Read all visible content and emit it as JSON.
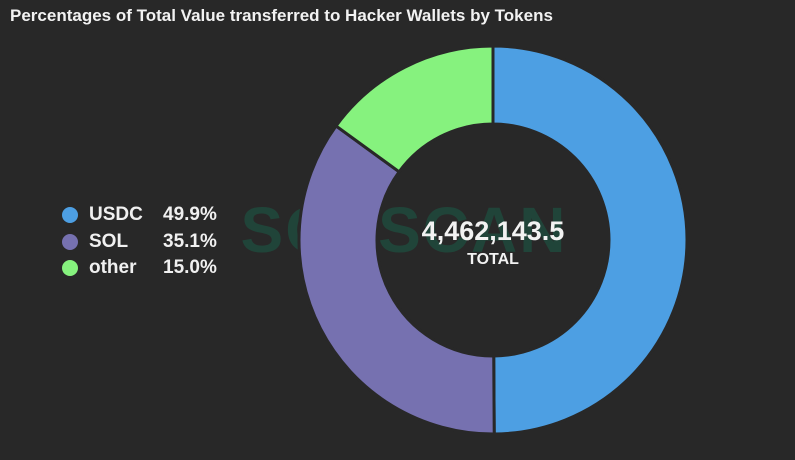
{
  "title": "Percentages of Total Value transferred to Hacker Wallets by Tokens",
  "watermark": "SOLSCAN",
  "center": {
    "value": "4,462,143.5",
    "caption": "TOTAL"
  },
  "chart_data": {
    "type": "pie",
    "title": "Percentages of Total Value transferred to Hacker Wallets by Tokens",
    "total": "4,462,143.5",
    "total_label": "TOTAL",
    "legend_position": "left",
    "categories": [
      "USDC",
      "SOL",
      "other"
    ],
    "values": [
      49.9,
      35.1,
      15.0
    ],
    "labels": [
      "49.9%",
      "35.1%",
      "15.0%"
    ],
    "colors": [
      "#4d9fe3",
      "#7671b0",
      "#86f27e"
    ]
  }
}
